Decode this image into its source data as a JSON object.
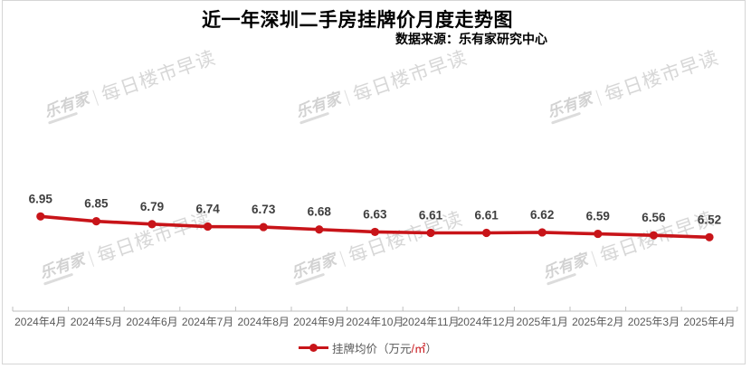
{
  "header": {
    "title": "近一年深圳二手房挂牌价月度走势图",
    "source": "数据来源：乐有家研究中心"
  },
  "watermark": {
    "brand": "乐有家",
    "text": "每日楼市早读"
  },
  "legend": {
    "prefix": "挂牌均价（万元",
    "unit": "/㎡",
    "suffix": "）"
  },
  "colors": {
    "line": "#c81419",
    "data_label": "#3f3f3f",
    "axis": "#bfbfbf",
    "axis_label": "#595959",
    "title_text": "#000000",
    "border": "#d6d6d6",
    "watermark": "#d7d7d7"
  },
  "chart_data": {
    "type": "line",
    "title": "近一年深圳二手房挂牌价月度走势图",
    "subtitle": "数据来源：乐有家研究中心",
    "categories": [
      "2024年4月",
      "2024年5月",
      "2024年6月",
      "2024年7月",
      "2024年8月",
      "2024年9月",
      "2024年10月",
      "2024年11月",
      "2024年12月",
      "2025年1月",
      "2025年2月",
      "2025年3月",
      "2025年4月"
    ],
    "series": [
      {
        "name": "挂牌均价（万元/㎡）",
        "values": [
          6.95,
          6.85,
          6.79,
          6.74,
          6.73,
          6.68,
          6.63,
          6.61,
          6.61,
          6.62,
          6.59,
          6.56,
          6.52
        ]
      }
    ],
    "xlabel": "",
    "ylabel": "",
    "ylim": [
      5,
      10
    ],
    "y_axis_visible": false,
    "grid": false,
    "data_labels": true,
    "marker": "circle",
    "legend_position": "bottom",
    "line_color": "#c81419"
  }
}
